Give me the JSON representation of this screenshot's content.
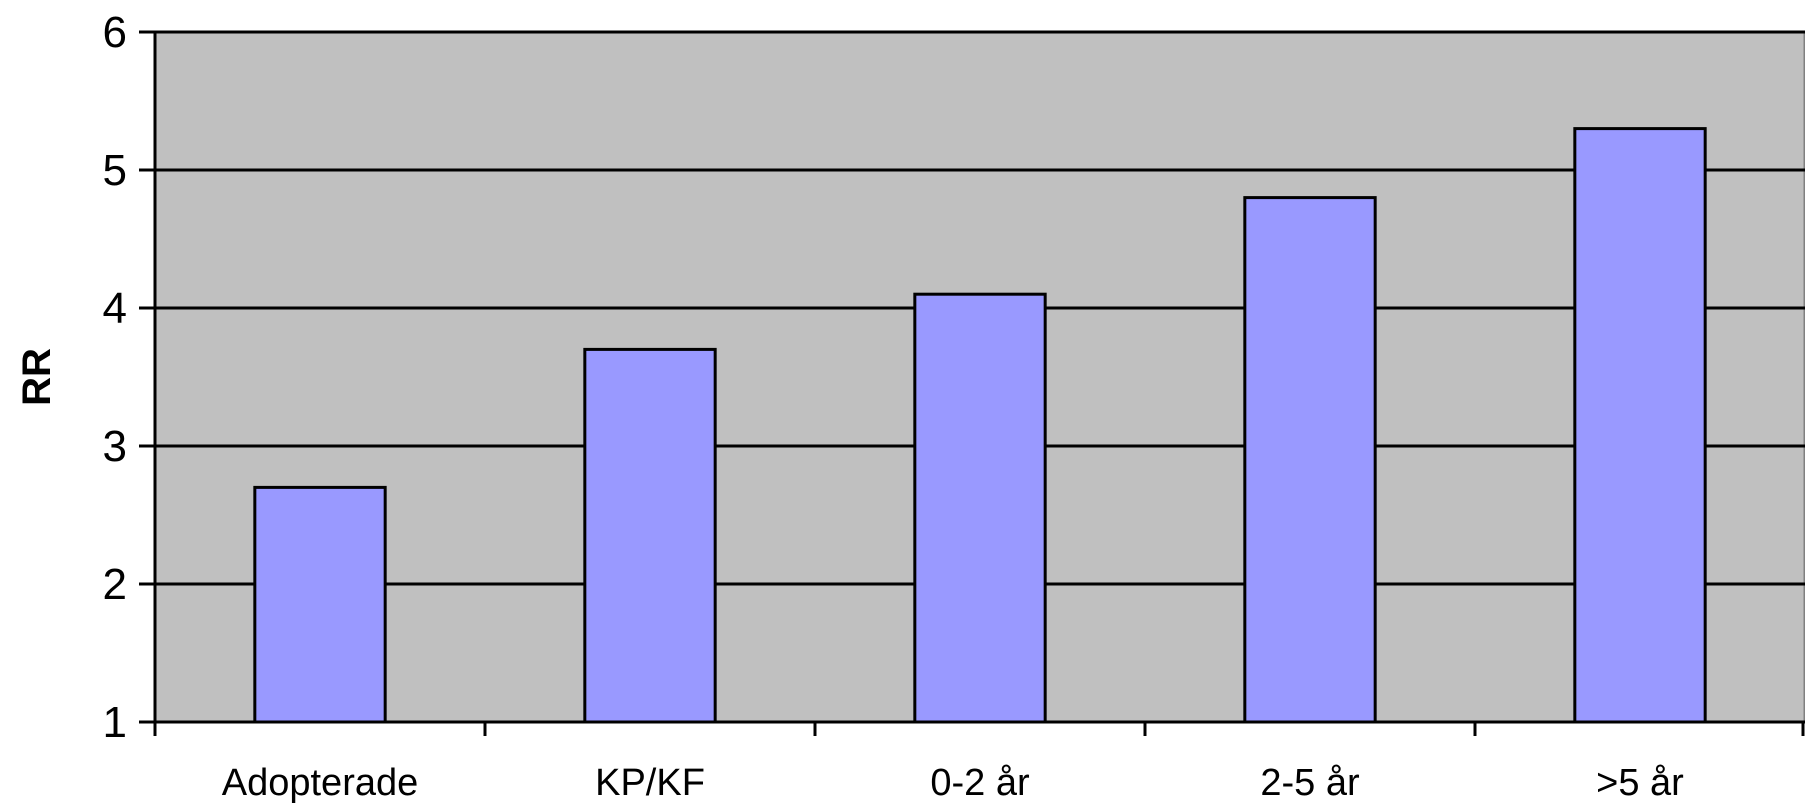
{
  "chart_data": {
    "type": "bar",
    "categories": [
      "Adopterade",
      "KP/KF",
      "0-2 år",
      "2-5 år",
      ">5 år"
    ],
    "values": [
      2.7,
      3.7,
      4.1,
      4.8,
      5.3
    ],
    "title": "",
    "xlabel": "",
    "ylabel": "RR",
    "ylim": [
      1,
      6
    ],
    "yticks": [
      1,
      2,
      3,
      4,
      5,
      6
    ],
    "grid": true,
    "legend": "none",
    "colors": {
      "bar_fill": "#9999ff",
      "bar_stroke": "#000000",
      "plot_background": "#c0c0c0",
      "gridline": "#000000",
      "axis": "#000000"
    }
  }
}
